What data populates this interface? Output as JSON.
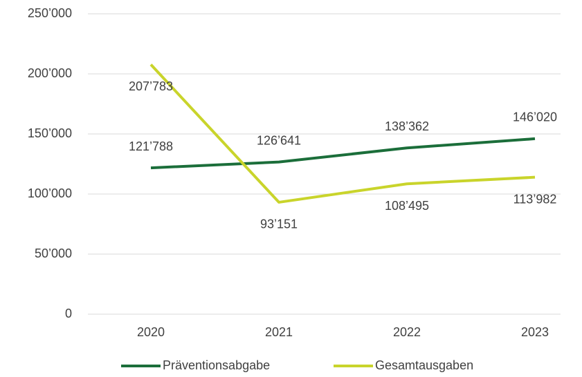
{
  "chart_data": {
    "type": "line",
    "categories": [
      "2020",
      "2021",
      "2022",
      "2023"
    ],
    "series": [
      {
        "name": "Präventionsabgabe",
        "color": "#1b6e3a",
        "values": [
          121788,
          126641,
          138362,
          146020
        ],
        "value_labels": [
          "121’788",
          "126’641",
          "138’362",
          "146’020"
        ]
      },
      {
        "name": "Gesamtausgaben",
        "color": "#c9d42b",
        "values": [
          207783,
          93151,
          108495,
          113982
        ],
        "value_labels": [
          "207’783",
          "93’151",
          "108’495",
          "113’982"
        ]
      }
    ],
    "ylim": [
      0,
      250000
    ],
    "yticks": [
      {
        "value": 0,
        "label": "0"
      },
      {
        "value": 50000,
        "label": "50’000"
      },
      {
        "value": 100000,
        "label": "100’000"
      },
      {
        "value": 150000,
        "label": "150’000"
      },
      {
        "value": 200000,
        "label": "200’000"
      },
      {
        "value": 250000,
        "label": "250’000"
      }
    ],
    "grid": true,
    "legend": "bottom"
  }
}
